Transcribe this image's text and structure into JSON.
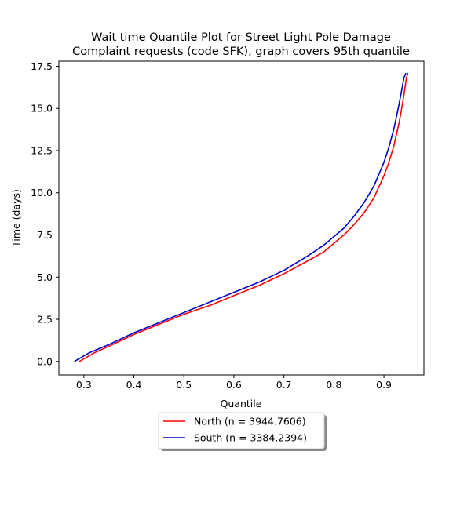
{
  "chart_data": {
    "type": "line",
    "title_lines": [
      "Wait time Quantile Plot for Street Light Pole Damage",
      "Complaint  requests (code SFK), graph covers 95th quantile"
    ],
    "xlabel": "Quantile",
    "ylabel": "Time (days)",
    "xlim": [
      0.25,
      0.98
    ],
    "ylim": [
      -0.8,
      17.8
    ],
    "x_ticks": [
      0.3,
      0.4,
      0.5,
      0.6,
      0.7,
      0.8,
      0.9
    ],
    "x_tick_labels": [
      "0.3",
      "0.4",
      "0.5",
      "0.6",
      "0.7",
      "0.8",
      "0.9"
    ],
    "y_ticks": [
      0.0,
      2.5,
      5.0,
      7.5,
      10.0,
      12.5,
      15.0,
      17.5
    ],
    "y_tick_labels": [
      "0.0",
      "2.5",
      "5.0",
      "7.5",
      "10.0",
      "12.5",
      "15.0",
      "17.5"
    ],
    "grid": false,
    "legend_position": "below-center",
    "series": [
      {
        "name": "North (n = 3944.7606)",
        "color": "#ff0000",
        "x": [
          0.291,
          0.32,
          0.35,
          0.4,
          0.45,
          0.5,
          0.55,
          0.6,
          0.65,
          0.7,
          0.75,
          0.78,
          0.8,
          0.82,
          0.84,
          0.86,
          0.88,
          0.9,
          0.91,
          0.92,
          0.93,
          0.935,
          0.94,
          0.945,
          0.948
        ],
        "y": [
          0.0,
          0.5,
          0.9,
          1.6,
          2.2,
          2.8,
          3.3,
          3.9,
          4.5,
          5.2,
          6.0,
          6.5,
          7.0,
          7.5,
          8.1,
          8.8,
          9.7,
          11.0,
          11.8,
          12.8,
          14.1,
          14.9,
          15.8,
          16.8,
          17.1
        ]
      },
      {
        "name": "South (n = 3384.2394)",
        "color": "#0000cc",
        "x": [
          0.281,
          0.31,
          0.35,
          0.4,
          0.45,
          0.5,
          0.55,
          0.6,
          0.65,
          0.7,
          0.75,
          0.78,
          0.8,
          0.82,
          0.84,
          0.86,
          0.88,
          0.9,
          0.91,
          0.92,
          0.93,
          0.935,
          0.94,
          0.944
        ],
        "y": [
          0.0,
          0.5,
          1.0,
          1.7,
          2.3,
          2.9,
          3.5,
          4.1,
          4.7,
          5.4,
          6.3,
          6.9,
          7.4,
          7.9,
          8.6,
          9.4,
          10.4,
          11.8,
          12.7,
          13.8,
          15.2,
          16.0,
          16.8,
          17.1
        ]
      }
    ]
  }
}
